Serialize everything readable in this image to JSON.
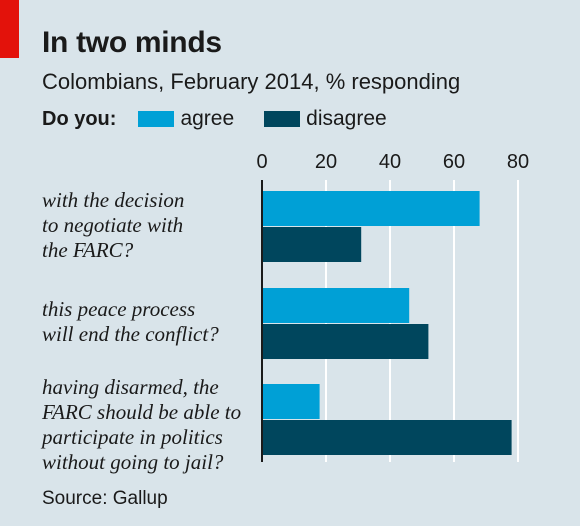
{
  "header": {
    "title": "In two minds",
    "subtitle": "Colombians, February 2014, % responding"
  },
  "legend": {
    "prefix": "Do you:",
    "entries": [
      {
        "label": "agree",
        "color": "#00a0d6"
      },
      {
        "label": "disagree",
        "color": "#00465d"
      }
    ]
  },
  "source": "Source: Gallup",
  "chart_data": {
    "type": "bar",
    "orientation": "horizontal",
    "categories": [
      "with the decision\nto negotiate with\nthe FARC?",
      "this peace process\nwill end the conflict?",
      "having disarmed, the\nFARC should be able to\nparticipate in politics\nwithout going to jail?"
    ],
    "series": [
      {
        "name": "agree",
        "values": [
          68,
          46,
          18
        ],
        "color": "#00a0d6"
      },
      {
        "name": "disagree",
        "values": [
          31,
          52,
          78
        ],
        "color": "#00465d"
      }
    ],
    "xlim": [
      0,
      80
    ],
    "xticks": [
      0,
      20,
      40,
      60,
      80
    ],
    "tick_position": "top",
    "grid": true
  }
}
